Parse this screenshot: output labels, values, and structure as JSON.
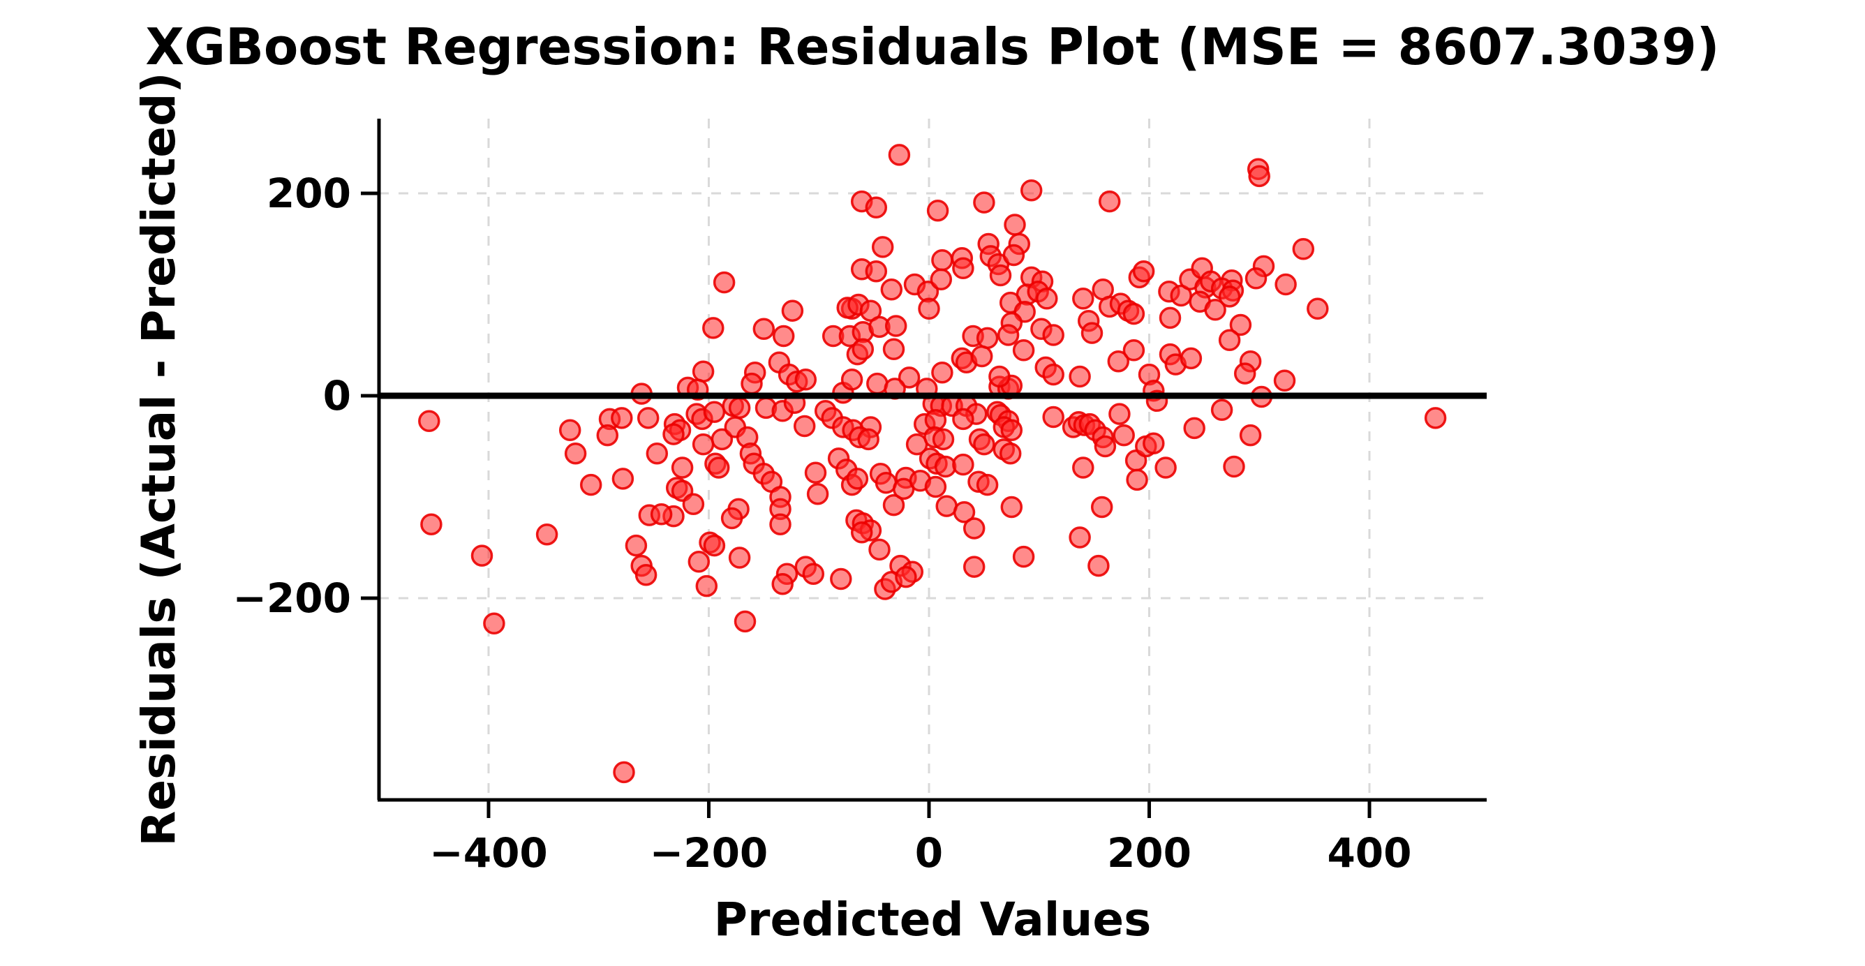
{
  "figure": {
    "title": "XGBoost Regression: Residuals Plot (MSE = 8607.3039)",
    "xlabel": "Predicted Values",
    "ylabel": "Residuals (Actual - Predicted)"
  },
  "chart_data": {
    "type": "scatter",
    "title": "XGBoost Regression: Residuals Plot (MSE = 8607.3039)",
    "xlabel": "Predicted Values",
    "ylabel": "Residuals (Actual - Predicted)",
    "mse": 8607.3039,
    "xlim": [
      -499.5,
      506.5
    ],
    "ylim": [
      -399.3,
      273.8
    ],
    "x_ticks": [
      -400,
      -200,
      0,
      200,
      400
    ],
    "y_ticks": [
      -200,
      0,
      200
    ],
    "x_tick_labels": [
      "−400",
      "−200",
      "0",
      "200",
      "400"
    ],
    "y_tick_labels": [
      "−200",
      "0",
      "200"
    ],
    "grid": true,
    "grid_style": "dashed",
    "legend": "none",
    "zero_line_y": 0,
    "colors": {
      "marker_fill": "#ff2b2b",
      "marker_edge": "#ec0000",
      "zero_line": "#000000",
      "grid": "#d9d9d9",
      "spine": "#000000",
      "text": "#000000",
      "background": "#ffffff"
    },
    "marker": {
      "shape": "circle",
      "radius_px": 14,
      "fill_opacity": 0.55,
      "edge_opacity": 0.9
    },
    "points": [
      [
        -27,
        238
      ],
      [
        -61,
        192
      ],
      [
        -48,
        186
      ],
      [
        -42,
        147
      ],
      [
        -61,
        125
      ],
      [
        -48,
        123
      ],
      [
        -186,
        112
      ],
      [
        -34,
        105
      ],
      [
        -13,
        110
      ],
      [
        -1,
        103
      ],
      [
        -70,
        86
      ],
      [
        -74,
        87
      ],
      [
        -64,
        90
      ],
      [
        -53,
        84
      ],
      [
        -124,
        84
      ],
      [
        -196,
        67
      ],
      [
        -150,
        66
      ],
      [
        -132,
        59
      ],
      [
        -87,
        59
      ],
      [
        -72,
        59
      ],
      [
        -60,
        63
      ],
      [
        -45,
        68
      ],
      [
        -30,
        69
      ],
      [
        0,
        86
      ],
      [
        93,
        203
      ],
      [
        50,
        191
      ],
      [
        164,
        192
      ],
      [
        8,
        183
      ],
      [
        78,
        169
      ],
      [
        54,
        150
      ],
      [
        82,
        150
      ],
      [
        56,
        138
      ],
      [
        63,
        130
      ],
      [
        77,
        139
      ],
      [
        12,
        134
      ],
      [
        30,
        136
      ],
      [
        31,
        126
      ],
      [
        11,
        115
      ],
      [
        65,
        119
      ],
      [
        93,
        117
      ],
      [
        103,
        113
      ],
      [
        89,
        100
      ],
      [
        99,
        103
      ],
      [
        107,
        96
      ],
      [
        74,
        92
      ],
      [
        87,
        83
      ],
      [
        75,
        72
      ],
      [
        72,
        60
      ],
      [
        40,
        59
      ],
      [
        53,
        57
      ],
      [
        102,
        66
      ],
      [
        113,
        60
      ],
      [
        140,
        96
      ],
      [
        145,
        74
      ],
      [
        148,
        62
      ],
      [
        158,
        105
      ],
      [
        164,
        88
      ],
      [
        174,
        91
      ],
      [
        181,
        84
      ],
      [
        186,
        81
      ],
      [
        191,
        117
      ],
      [
        195,
        123
      ],
      [
        218,
        103
      ],
      [
        229,
        99
      ],
      [
        219,
        77
      ],
      [
        237,
        115
      ],
      [
        248,
        126
      ],
      [
        251,
        107
      ],
      [
        246,
        93
      ],
      [
        299,
        224
      ],
      [
        300,
        217
      ],
      [
        340,
        145
      ],
      [
        304,
        128
      ],
      [
        297,
        116
      ],
      [
        256,
        113
      ],
      [
        275,
        114
      ],
      [
        266,
        106
      ],
      [
        276,
        104
      ],
      [
        324,
        110
      ],
      [
        260,
        85
      ],
      [
        273,
        98
      ],
      [
        353,
        86
      ],
      [
        283,
        70
      ],
      [
        273,
        55
      ],
      [
        -454,
        -25
      ],
      [
        -326,
        -34
      ],
      [
        -290,
        -23
      ],
      [
        -279,
        -22
      ],
      [
        -292,
        -39
      ],
      [
        -321,
        -57
      ],
      [
        -261,
        2
      ],
      [
        -255,
        -22
      ],
      [
        -307,
        -88
      ],
      [
        -278,
        -82
      ],
      [
        -254,
        -118
      ],
      [
        -452,
        -127
      ],
      [
        -347,
        -137
      ],
      [
        -406,
        -158
      ],
      [
        -266,
        -148
      ],
      [
        -261,
        -168
      ],
      [
        -205,
        24
      ],
      [
        -219,
        8
      ],
      [
        -210,
        6
      ],
      [
        -158,
        23
      ],
      [
        -161,
        12
      ],
      [
        -136,
        33
      ],
      [
        -127,
        21
      ],
      [
        -120,
        14
      ],
      [
        -112,
        16
      ],
      [
        -78,
        3
      ],
      [
        -70,
        16
      ],
      [
        -65,
        41
      ],
      [
        -60,
        46
      ],
      [
        -47,
        12
      ],
      [
        -32,
        46
      ],
      [
        -18,
        18
      ],
      [
        -31,
        7
      ],
      [
        -2,
        7
      ],
      [
        -231,
        -28
      ],
      [
        -226,
        -34
      ],
      [
        -232,
        -38
      ],
      [
        -211,
        -18
      ],
      [
        -206,
        -23
      ],
      [
        -195,
        -16
      ],
      [
        -178,
        -10
      ],
      [
        -172,
        -12
      ],
      [
        -188,
        -43
      ],
      [
        -205,
        -48
      ],
      [
        -194,
        -67
      ],
      [
        -191,
        -71
      ],
      [
        -224,
        -71
      ],
      [
        -229,
        -91
      ],
      [
        -224,
        -94
      ],
      [
        -214,
        -107
      ],
      [
        -232,
        -119
      ],
      [
        -247,
        -57
      ],
      [
        -243,
        -117
      ],
      [
        -199,
        -145
      ],
      [
        -195,
        -148
      ],
      [
        -209,
        -164
      ],
      [
        -173,
        -112
      ],
      [
        -179,
        -121
      ],
      [
        -172,
        -160
      ],
      [
        -176,
        -31
      ],
      [
        -165,
        -41
      ],
      [
        -162,
        -57
      ],
      [
        -159,
        -67
      ],
      [
        -150,
        -77
      ],
      [
        -143,
        -85
      ],
      [
        -135,
        -100
      ],
      [
        -135,
        -112
      ],
      [
        -135,
        -127
      ],
      [
        -148,
        -12
      ],
      [
        -133,
        -15
      ],
      [
        -122,
        -7
      ],
      [
        -113,
        -30
      ],
      [
        -103,
        -76
      ],
      [
        -101,
        -97
      ],
      [
        -94,
        -15
      ],
      [
        -88,
        -22
      ],
      [
        -82,
        -62
      ],
      [
        -75,
        -73
      ],
      [
        -70,
        -88
      ],
      [
        -65,
        -82
      ],
      [
        -53,
        -31
      ],
      [
        -78,
        -31
      ],
      [
        -69,
        -34
      ],
      [
        -63,
        -41
      ],
      [
        -55,
        -43
      ],
      [
        -44,
        -77
      ],
      [
        -39,
        -86
      ],
      [
        -66,
        -123
      ],
      [
        -60,
        -126
      ],
      [
        -53,
        -133
      ],
      [
        -61,
        -135
      ],
      [
        -45,
        -152
      ],
      [
        -32,
        -108
      ],
      [
        -21,
        -81
      ],
      [
        -23,
        -92
      ],
      [
        -8,
        -84
      ],
      [
        1,
        -62
      ],
      [
        -11,
        -48
      ],
      [
        -4,
        -28
      ],
      [
        -112,
        -169
      ],
      [
        -105,
        -176
      ],
      [
        -129,
        -176
      ],
      [
        -26,
        -168
      ],
      [
        -15,
        -174
      ],
      [
        12,
        23
      ],
      [
        30,
        37
      ],
      [
        34,
        33
      ],
      [
        48,
        39
      ],
      [
        64,
        9
      ],
      [
        72,
        7
      ],
      [
        75,
        10
      ],
      [
        64,
        19
      ],
      [
        86,
        45
      ],
      [
        106,
        28
      ],
      [
        113,
        21
      ],
      [
        137,
        19
      ],
      [
        172,
        34
      ],
      [
        186,
        45
      ],
      [
        200,
        21
      ],
      [
        204,
        5
      ],
      [
        219,
        41
      ],
      [
        224,
        31
      ],
      [
        238,
        37
      ],
      [
        207,
        -5
      ],
      [
        4,
        -8
      ],
      [
        11,
        -10
      ],
      [
        21,
        -10
      ],
      [
        34,
        -10
      ],
      [
        43,
        -18
      ],
      [
        31,
        -23
      ],
      [
        6,
        -24
      ],
      [
        62,
        -16
      ],
      [
        65,
        -19
      ],
      [
        72,
        -25
      ],
      [
        68,
        -31
      ],
      [
        75,
        -34
      ],
      [
        113,
        -21
      ],
      [
        131,
        -31
      ],
      [
        136,
        -26
      ],
      [
        141,
        -29
      ],
      [
        146,
        -28
      ],
      [
        151,
        -34
      ],
      [
        158,
        -41
      ],
      [
        160,
        -50
      ],
      [
        173,
        -18
      ],
      [
        177,
        -39
      ],
      [
        5,
        -41
      ],
      [
        13,
        -43
      ],
      [
        7,
        -67
      ],
      [
        15,
        -70
      ],
      [
        31,
        -68
      ],
      [
        46,
        -43
      ],
      [
        50,
        -48
      ],
      [
        68,
        -53
      ],
      [
        74,
        -57
      ],
      [
        6,
        -90
      ],
      [
        45,
        -85
      ],
      [
        53,
        -88
      ],
      [
        140,
        -71
      ],
      [
        157,
        -110
      ],
      [
        188,
        -64
      ],
      [
        189,
        -83
      ],
      [
        197,
        -50
      ],
      [
        204,
        -47
      ],
      [
        215,
        -71
      ],
      [
        241,
        -32
      ],
      [
        16,
        -109
      ],
      [
        32,
        -115
      ],
      [
        41,
        -131
      ],
      [
        75,
        -110
      ],
      [
        86,
        -159
      ],
      [
        137,
        -140
      ],
      [
        154,
        -168
      ],
      [
        41,
        -169
      ],
      [
        292,
        34
      ],
      [
        287,
        22
      ],
      [
        323,
        15
      ],
      [
        302,
        -1
      ],
      [
        266,
        -14
      ],
      [
        292,
        -39
      ],
      [
        277,
        -70
      ],
      [
        460,
        -22
      ],
      [
        -395,
        -225
      ],
      [
        -277,
        -372
      ],
      [
        -257,
        -177
      ],
      [
        -202,
        -188
      ],
      [
        -133,
        -186
      ],
      [
        -80,
        -181
      ],
      [
        -40,
        -191
      ],
      [
        -34,
        -184
      ],
      [
        -21,
        -179
      ],
      [
        -167,
        -223
      ]
    ]
  }
}
